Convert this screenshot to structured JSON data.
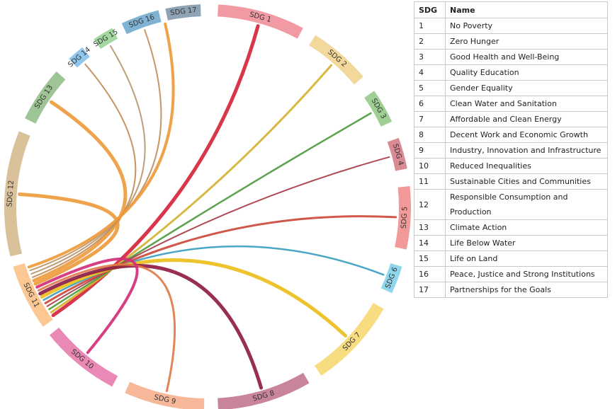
{
  "diagram": {
    "groups": [
      {
        "label": "SDG 1",
        "color": "#f29aa3"
      },
      {
        "label": "SDG 2",
        "color": "#f2d89a"
      },
      {
        "label": "SDG 3",
        "color": "#9fcf94"
      },
      {
        "label": "SDG 4",
        "color": "#d98a93"
      },
      {
        "label": "SDG 5",
        "color": "#f29a9a"
      },
      {
        "label": "SDG 6",
        "color": "#8fd6ec"
      },
      {
        "label": "SDG 7",
        "color": "#f7dd7f"
      },
      {
        "label": "SDG 8",
        "color": "#c8849c"
      },
      {
        "label": "SDG 9",
        "color": "#f7b89a"
      },
      {
        "label": "SDG 10",
        "color": "#ea89b6"
      },
      {
        "label": "SDG 11",
        "color": "#fbc894"
      },
      {
        "label": "SDG 12",
        "color": "#d9c19a"
      },
      {
        "label": "SDG 13",
        "color": "#9fc597"
      },
      {
        "label": "SDG 14",
        "color": "#91c7ec"
      },
      {
        "label": "SDG 15",
        "color": "#a3d9a0"
      },
      {
        "label": "SDG 16",
        "color": "#7fb2d3"
      },
      {
        "label": "SDG 17",
        "color": "#8fa3b5"
      }
    ],
    "link_colors": {
      "SDG 1": "#d6243c",
      "SDG 2": "#d4b233",
      "SDG 3": "#4f9a3f",
      "SDG 4": "#a93a48",
      "SDG 5": "#cc4a3c",
      "SDG 6": "#3a9fc0",
      "SDG 7": "#ebbe1c",
      "SDG 8": "#8e1c45",
      "SDG 9": "#e07a47",
      "SDG 10": "#d22f79",
      "SDG 12": "#ee9b3e",
      "SDG 13": "#ee9b3e",
      "SDG 14": "#c28a52",
      "SDG 15": "#b8956e",
      "SDG 16": "#bf9160",
      "SDG 17": "#ef9a3c"
    }
  },
  "table": {
    "headers": [
      "SDG",
      "Name"
    ],
    "rows": [
      [
        "1",
        "No Poverty"
      ],
      [
        "2",
        "Zero Hunger"
      ],
      [
        "3",
        "Good Health and Well-Being"
      ],
      [
        "4",
        "Quality Education"
      ],
      [
        "5",
        "Gender Equality"
      ],
      [
        "6",
        "Clean Water and Sanitation"
      ],
      [
        "7",
        "Affordable and Clean Energy"
      ],
      [
        "8",
        "Decent Work and Economic Growth"
      ],
      [
        "9",
        "Industry, Innovation and Infrastructure"
      ],
      [
        "10",
        "Reduced Inequalities"
      ],
      [
        "11",
        "Sustainable Cities and Communities"
      ],
      [
        "12",
        "Responsible Consumption and Production"
      ],
      [
        "13",
        "Climate Action"
      ],
      [
        "14",
        "Life Below Water"
      ],
      [
        "15",
        "Life on Land"
      ],
      [
        "16",
        "Peace, Justice and Strong Institutions"
      ],
      [
        "17",
        "Partnerships for the Goals"
      ]
    ]
  }
}
